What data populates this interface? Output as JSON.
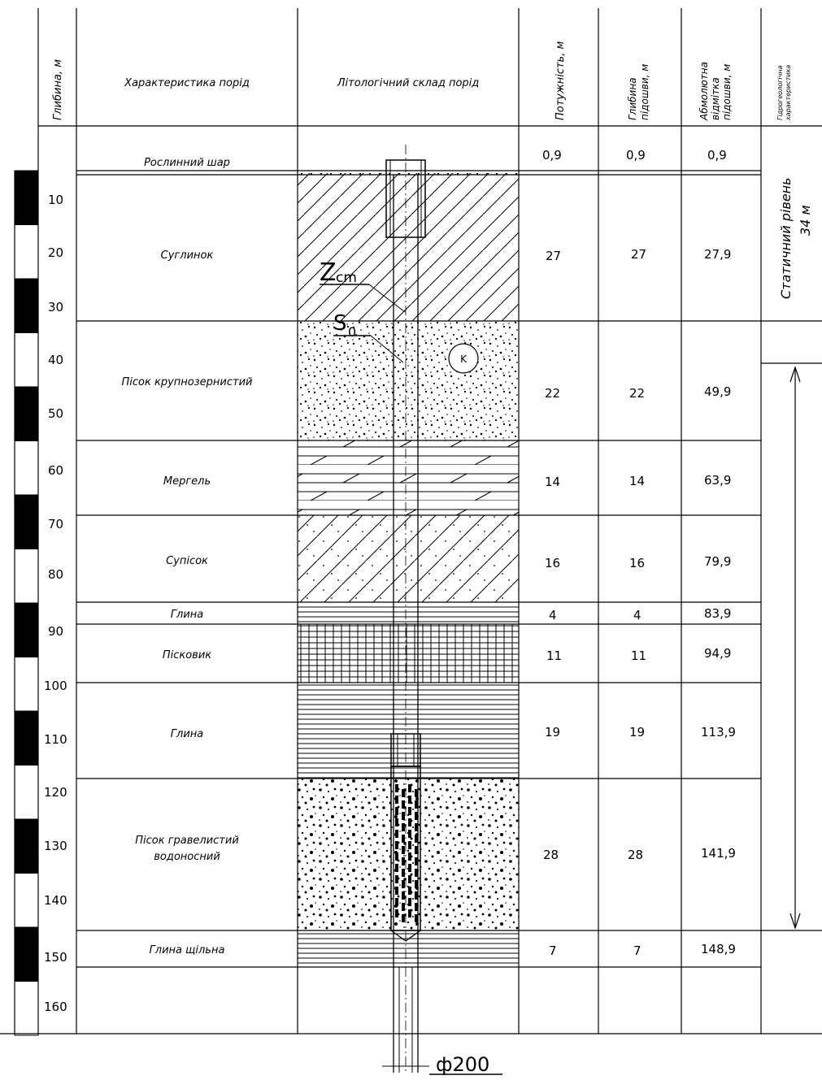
{
  "header": {
    "depth": "Глибина, м",
    "characteristic": "Характеристика порід",
    "lithology": "Літологічний склад порід",
    "thickness": "Потужність, м",
    "base_depth_1": "Глибина",
    "base_depth_2": "підошви, м",
    "abs_mark_1": "Абмолютна",
    "abs_mark_2": "відмітка",
    "abs_mark_3": "підошви, м",
    "hydro_1": "Гідрогеологічна",
    "hydro_2": "характеристика"
  },
  "depth_ticks": [
    "10",
    "20",
    "30",
    "40",
    "50",
    "60",
    "70",
    "80",
    "90",
    "100",
    "110",
    "120",
    "130",
    "140",
    "150",
    "160"
  ],
  "layers": [
    {
      "name": "Рослинний шар",
      "name2": "",
      "thickness": "0,9",
      "base": "0,9",
      "abs": "0,9"
    },
    {
      "name": "Суглинок",
      "name2": "",
      "thickness": "27",
      "base": "27",
      "abs": "27,9"
    },
    {
      "name": "Пісок крупнозернистий",
      "name2": "",
      "thickness": "22",
      "base": "22",
      "abs": "49,9"
    },
    {
      "name": "Мергель",
      "name2": "",
      "thickness": "14",
      "base": "14",
      "abs": "63,9"
    },
    {
      "name": "Супісок",
      "name2": "",
      "thickness": "16",
      "base": "16",
      "abs": "79,9"
    },
    {
      "name": "Глина",
      "name2": "",
      "thickness": "4",
      "base": "4",
      "abs": "83,9"
    },
    {
      "name": "Пісковик",
      "name2": "",
      "thickness": "11",
      "base": "11",
      "abs": "94,9"
    },
    {
      "name": "Глина",
      "name2": "",
      "thickness": "19",
      "base": "19",
      "abs": "113,9"
    },
    {
      "name": "Пісок гравелистий",
      "name2": "водоносний",
      "thickness": "28",
      "base": "28",
      "abs": "141,9"
    },
    {
      "name": "Глина щільна",
      "name2": "",
      "thickness": "7",
      "base": "7",
      "abs": "148,9"
    }
  ],
  "hydro": {
    "static_level_1": "Статичний рівень",
    "static_level_2": "34 м"
  },
  "annotations": {
    "zst": "Z",
    "zst_sub": "cm",
    "s0": "S",
    "s0_sub": "0",
    "k": "K",
    "diameter": "ф200"
  }
}
